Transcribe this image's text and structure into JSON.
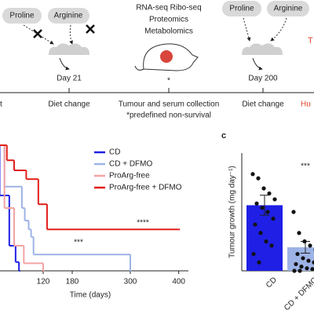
{
  "timeline": {
    "left_diet": {
      "items": [
        "Proline",
        "Arginine"
      ],
      "day": "Day 21"
    },
    "collection": {
      "methods": [
        "RNA-seq  Ribo-seq",
        "Proteomics",
        "Metabolomics"
      ],
      "marker": "*"
    },
    "right_diet": {
      "items": [
        "Proline",
        "Arginine"
      ],
      "day": "Day 200"
    },
    "cut_label": "T",
    "events": [
      "t",
      "Diet change",
      "Tumour and serum collection",
      "Diet change",
      "Hu"
    ],
    "note": "*predefined non-survival"
  },
  "chart_data": [
    {
      "type": "step",
      "xlabel": "Time (days)",
      "xlim": [
        0,
        420
      ],
      "xticks": [
        120,
        180,
        300,
        400
      ],
      "ylim": [
        0,
        100
      ],
      "series": [
        {
          "name": "CD",
          "color": "#1f1fe6",
          "x": [
            0,
            30,
            50,
            63,
            70
          ],
          "values": [
            100,
            60,
            20,
            7,
            0
          ]
        },
        {
          "name": "CD + DFMO",
          "color": "#9db3e6",
          "x": [
            0,
            40,
            76,
            82,
            90,
            95,
            100,
            300
          ],
          "values": [
            100,
            67,
            50,
            40,
            33,
            27,
            13,
            0
          ]
        },
        {
          "name": "ProArg-free",
          "color": "#f2a3a3",
          "x": [
            0,
            40,
            60,
            80,
            120
          ],
          "values": [
            100,
            50,
            20,
            6,
            0
          ]
        },
        {
          "name": "ProArg-free + DFMO",
          "color": "#e0201b",
          "x": [
            0,
            45,
            60,
            85,
            110,
            128,
            400
          ],
          "values": [
            100,
            88,
            80,
            73,
            53,
            33,
            33
          ]
        }
      ],
      "annotations": [
        "****",
        "***"
      ]
    },
    {
      "type": "bar",
      "panel": "c",
      "ylabel": "Tumour growth (mg day⁻¹)",
      "categories": [
        "CD",
        "CD + DFMO"
      ],
      "values": [
        78,
        28
      ],
      "errors": [
        12,
        7
      ],
      "colors": [
        "#1f1fe6",
        "#9db3e6"
      ],
      "ylim": [
        0,
        140
      ],
      "points": [
        [
          115,
          110,
          98,
          92,
          85,
          80,
          75,
          70,
          62,
          55,
          45,
          35,
          30,
          20,
          10
        ],
        [
          70,
          45,
          35,
          30,
          25,
          20,
          15,
          12,
          10,
          8,
          5,
          3,
          2,
          0,
          0
        ]
      ],
      "annotations": [
        "***"
      ]
    }
  ]
}
